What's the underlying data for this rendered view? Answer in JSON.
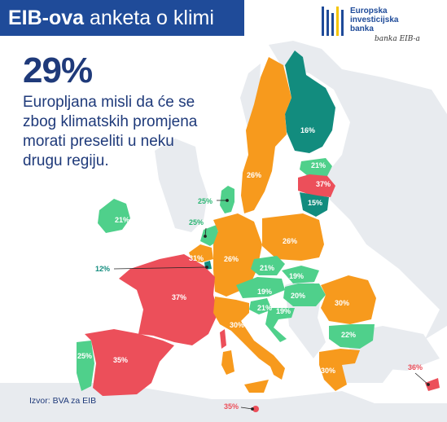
{
  "header": {
    "title_bold": "EIB-ova",
    "title_rest": " anketa o klimi"
  },
  "logo": {
    "lines": [
      "Europska",
      "investicijska",
      "banka"
    ],
    "signature": "banka EIB-a"
  },
  "headline": {
    "value": "29%",
    "lines": [
      "Europljana misli da će se",
      "zbog klimatskih promjena",
      "morati preseliti u neku",
      "drugu regiju."
    ]
  },
  "source": "Izvor: BVA za EIB",
  "colors": {
    "header": "#1f4b99",
    "text": "#1f3a7a",
    "teal": "#128c7e",
    "green": "#4fd08b",
    "orange": "#f79a1d",
    "red": "#ec4f5a",
    "non_eu": "#e8ebef"
  },
  "map": {
    "countries": [
      {
        "name": "Finska",
        "value": "16%",
        "cat": "teal"
      },
      {
        "name": "Švedska",
        "value": "26%",
        "cat": "orange"
      },
      {
        "name": "Estonija",
        "value": "21%",
        "cat": "green"
      },
      {
        "name": "Latvija",
        "value": "37%",
        "cat": "red"
      },
      {
        "name": "Litva",
        "value": "15%",
        "cat": "teal"
      },
      {
        "name": "Danska",
        "value": "25%",
        "cat": "green"
      },
      {
        "name": "Irska",
        "value": "21%",
        "cat": "green"
      },
      {
        "name": "Nizozemska",
        "value": "25%",
        "cat": "green"
      },
      {
        "name": "Belgija",
        "value": "31%",
        "cat": "orange"
      },
      {
        "name": "Luksemburg",
        "value": "12%",
        "cat": "teal"
      },
      {
        "name": "Njemačka",
        "value": "26%",
        "cat": "orange"
      },
      {
        "name": "Poljska",
        "value": "26%",
        "cat": "orange"
      },
      {
        "name": "Češka",
        "value": "21%",
        "cat": "green"
      },
      {
        "name": "Slovačka",
        "value": "19%",
        "cat": "green"
      },
      {
        "name": "Austrija",
        "value": "19%",
        "cat": "green"
      },
      {
        "name": "Mađarska",
        "value": "20%",
        "cat": "green"
      },
      {
        "name": "Slovenija",
        "value": "21%",
        "cat": "green"
      },
      {
        "name": "Hrvatska",
        "value": "19%",
        "cat": "green"
      },
      {
        "name": "Rumunjska",
        "value": "30%",
        "cat": "orange"
      },
      {
        "name": "Bugarska",
        "value": "22%",
        "cat": "green"
      },
      {
        "name": "Francuska",
        "value": "37%",
        "cat": "red"
      },
      {
        "name": "Italija",
        "value": "30%",
        "cat": "orange"
      },
      {
        "name": "Portugal",
        "value": "25%",
        "cat": "green"
      },
      {
        "name": "Španjolska",
        "value": "35%",
        "cat": "red"
      },
      {
        "name": "Grčka",
        "value": "30%",
        "cat": "orange"
      },
      {
        "name": "Cipar",
        "value": "36%",
        "cat": "red"
      },
      {
        "name": "Malta",
        "value": "35%",
        "cat": "red"
      }
    ]
  }
}
